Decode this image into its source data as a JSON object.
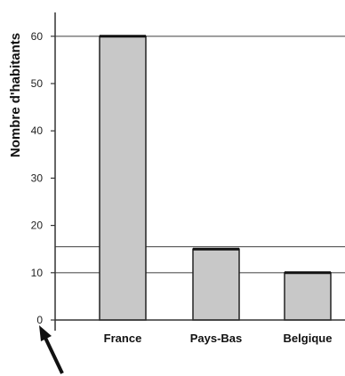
{
  "chart_data": {
    "type": "bar",
    "title": "",
    "xlabel": "",
    "ylabel": "Nombre d'habitants",
    "categories": [
      "France",
      "Pays-Bas",
      "Belgique"
    ],
    "values": [
      60,
      15,
      10
    ],
    "ylim": [
      0,
      65
    ],
    "yticks": [
      0,
      10,
      20,
      30,
      40,
      50,
      60
    ],
    "reference_lines": [
      60,
      15.5,
      10
    ],
    "bar_color": "#c8c8c8",
    "line_color": "#555555"
  }
}
